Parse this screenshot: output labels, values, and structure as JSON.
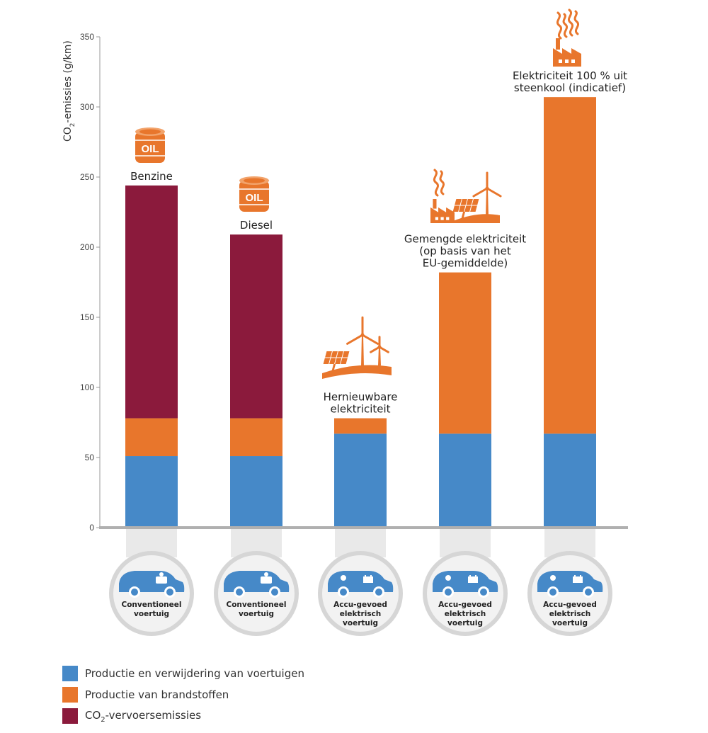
{
  "chart_data": {
    "type": "bar",
    "stacked": true,
    "ylabel": "CO2-emissies (g/km)",
    "ylim": [
      0,
      350
    ],
    "yticks": [
      0,
      50,
      100,
      150,
      200,
      250,
      300,
      350
    ],
    "grid": false,
    "legend_position": "bottom-left",
    "categories": [
      "Conventioneel voertuig",
      "Conventioneel voertuig",
      "Accu-gevoed elektrisch voertuig",
      "Accu-gevoed elektrisch voertuig",
      "Accu-gevoed elektrisch voertuig"
    ],
    "bar_captions": [
      "Benzine",
      "Diesel",
      "Hernieuwbare elektriciteit",
      "Gemengde elektriciteit (op basis van het EU-gemiddelde)",
      "Elektriciteit 100 % uit steenkool (indicatief)"
    ],
    "bar_icons": [
      "oil-barrel-icon",
      "oil-barrel-icon",
      "renewable-energy-icon",
      "mixed-energy-icon",
      "coal-factory-icon"
    ],
    "vehicle_icons": [
      "combustion-car-icon",
      "combustion-car-icon",
      "electric-car-icon",
      "electric-car-icon",
      "electric-car-icon"
    ],
    "series": [
      {
        "name": "Productie en verwijdering van voertuigen",
        "color": "#4689c8",
        "values": [
          51,
          51,
          67,
          67,
          67
        ]
      },
      {
        "name": "Productie van brandstoffen",
        "color": "#e8762c",
        "values": [
          27,
          27,
          11,
          115,
          240
        ]
      },
      {
        "name": "CO2-vervoersemissies",
        "color": "#8b1a3c",
        "values": [
          166,
          131,
          0,
          0,
          0
        ]
      }
    ]
  },
  "legend": {
    "items": [
      {
        "label": "Productie en verwijdering van voertuigen",
        "color": "#4689c8"
      },
      {
        "label": "Productie van brandstoffen",
        "color": "#e8762c"
      },
      {
        "label_main": "CO",
        "label_sub": "2",
        "label_rest": "-vervoersemissies",
        "color": "#8b1a3c"
      }
    ]
  },
  "icons": {
    "oil_text": "OIL"
  }
}
